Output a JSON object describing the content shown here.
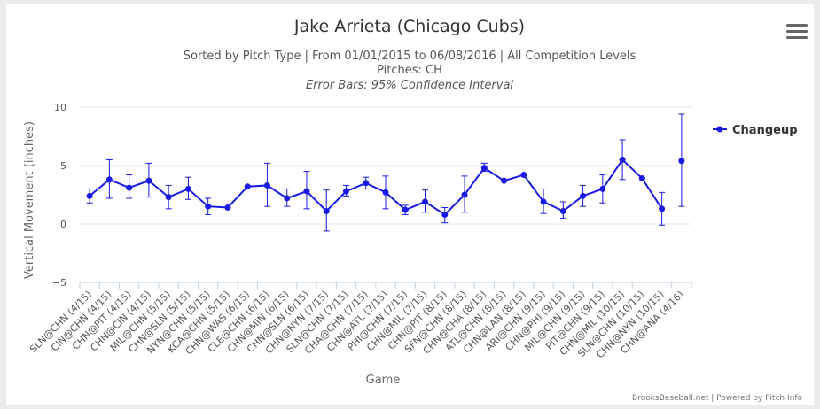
{
  "chart_data": {
    "type": "line",
    "title": "Jake Arrieta (Chicago Cubs)",
    "subtitle": "Sorted by Pitch Type | From 01/01/2015 to 06/08/2016 | All Competition Levels",
    "subtitle2": "Pitches: CH",
    "subtitle3": "Error Bars: 95% Confidence Interval",
    "xlabel": "Game",
    "ylabel": "Vertical Movement (inches)",
    "ylim": [
      -5,
      10
    ],
    "yticks": [
      10,
      5,
      0,
      -5
    ],
    "grid": true,
    "legend_position": "right",
    "credits": "BrooksBaseball.net | Powered by Pitch Info",
    "categories": [
      "SLN@CHN (4/15)",
      "CIN@CHN (4/15)",
      "CHN@PIT (4/15)",
      "CHN@CIN (4/15)",
      "MIL@CHN (5/15)",
      "CHN@SLN (5/15)",
      "NYN@CHN (5/15)",
      "KCA@CHN (5/15)",
      "CHN@WAS (6/15)",
      "CLE@CHN (6/15)",
      "CHN@MIN (6/15)",
      "CHN@SLN (6/15)",
      "CHN@NYN (7/15)",
      "SLN@CHN (7/15)",
      "CHA@CHN (7/15)",
      "CHN@ATL (7/15)",
      "PHI@CHN (7/15)",
      "CHN@MIL (7/15)",
      "CHN@PIT (8/15)",
      "SFN@CHN (8/15)",
      "CHN@CHA (8/15)",
      "ATL@CHN (8/15)",
      "CHN@LAN (8/15)",
      "ARI@CHN (9/15)",
      "CHN@PHI (9/15)",
      "MIL@CHN (9/15)",
      "PIT@CHN (9/15)",
      "CHN@MIL (10/15)",
      "SLN@CHN (10/15)",
      "CHN@NYN (10/15)",
      "CHN@ANA (4/16)"
    ],
    "series": [
      {
        "name": "Changeup",
        "color": "#1a1ae6",
        "values": [
          2.4,
          3.8,
          3.1,
          3.7,
          2.3,
          3.0,
          1.5,
          1.4,
          3.2,
          3.3,
          2.2,
          2.8,
          1.1,
          2.8,
          3.5,
          2.7,
          1.2,
          1.9,
          0.8,
          2.5,
          4.8,
          3.7,
          4.2,
          1.9,
          1.1,
          2.4,
          3.0,
          5.5,
          3.9,
          1.3,
          5.4
        ],
        "error_low": [
          1.8,
          2.2,
          2.2,
          2.3,
          1.3,
          2.1,
          0.8,
          null,
          null,
          1.5,
          1.5,
          1.3,
          -0.6,
          2.4,
          3.0,
          1.3,
          0.8,
          1.0,
          0.1,
          1.0,
          4.5,
          null,
          null,
          0.9,
          0.5,
          1.5,
          1.8,
          3.8,
          null,
          -0.1,
          1.5
        ],
        "error_high": [
          3.0,
          5.5,
          4.2,
          5.2,
          3.3,
          4.0,
          2.2,
          null,
          null,
          5.2,
          3.0,
          4.5,
          2.9,
          3.3,
          4.0,
          4.1,
          1.6,
          2.9,
          1.4,
          4.1,
          5.2,
          null,
          null,
          3.0,
          1.9,
          3.3,
          4.2,
          7.2,
          null,
          2.7,
          9.4
        ]
      }
    ]
  },
  "ui": {
    "menu_icon": "hamburger-menu-icon"
  }
}
